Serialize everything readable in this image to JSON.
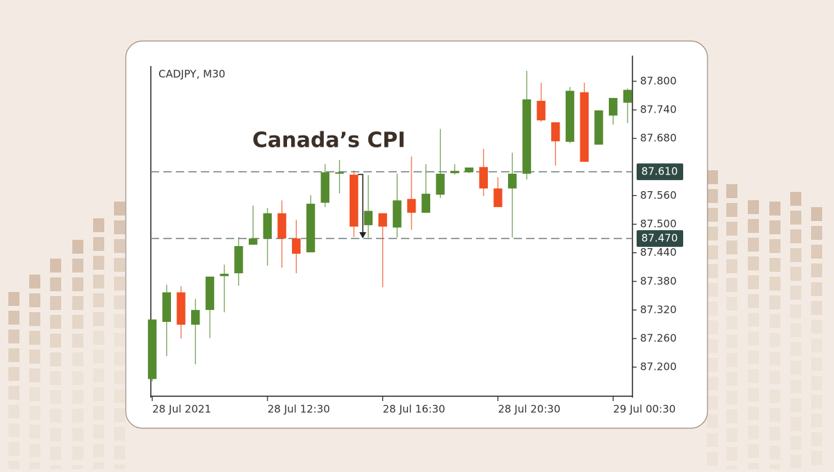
{
  "chart_data": {
    "type": "candlestick",
    "title": "CADJPY, M30",
    "annotation": "Canada’s CPI",
    "up_color": "#558b2f",
    "down_color": "#f04e23",
    "candles": [
      {
        "open": 87.175,
        "high": 87.3,
        "low": 87.17,
        "close": 87.3
      },
      {
        "open": 87.295,
        "high": 87.373,
        "low": 87.223,
        "close": 87.357
      },
      {
        "open": 87.357,
        "high": 87.37,
        "low": 87.26,
        "close": 87.289
      },
      {
        "open": 87.289,
        "high": 87.343,
        "low": 87.206,
        "close": 87.32
      },
      {
        "open": 87.32,
        "high": 87.39,
        "low": 87.261,
        "close": 87.39
      },
      {
        "open": 87.391,
        "high": 87.415,
        "low": 87.315,
        "close": 87.396
      },
      {
        "open": 87.397,
        "high": 87.473,
        "low": 87.371,
        "close": 87.454
      },
      {
        "open": 87.457,
        "high": 87.539,
        "low": 87.457,
        "close": 87.47
      },
      {
        "open": 87.47,
        "high": 87.534,
        "low": 87.413,
        "close": 87.523
      },
      {
        "open": 87.523,
        "high": 87.55,
        "low": 87.409,
        "close": 87.47
      },
      {
        "open": 87.47,
        "high": 87.509,
        "low": 87.397,
        "close": 87.438
      },
      {
        "open": 87.441,
        "high": 87.561,
        "low": 87.441,
        "close": 87.543
      },
      {
        "open": 87.545,
        "high": 87.626,
        "low": 87.536,
        "close": 87.609
      },
      {
        "open": 87.606,
        "high": 87.635,
        "low": 87.565,
        "close": 87.609
      },
      {
        "open": 87.604,
        "high": 87.613,
        "low": 87.473,
        "close": 87.495
      },
      {
        "open": 87.498,
        "high": 87.603,
        "low": 87.472,
        "close": 87.528
      },
      {
        "open": 87.523,
        "high": 87.523,
        "low": 87.368,
        "close": 87.495
      },
      {
        "open": 87.493,
        "high": 87.606,
        "low": 87.472,
        "close": 87.55
      },
      {
        "open": 87.553,
        "high": 87.642,
        "low": 87.488,
        "close": 87.524
      },
      {
        "open": 87.524,
        "high": 87.626,
        "low": 87.524,
        "close": 87.564
      },
      {
        "open": 87.562,
        "high": 87.7,
        "low": 87.555,
        "close": 87.606
      },
      {
        "open": 87.607,
        "high": 87.626,
        "low": 87.604,
        "close": 87.612
      },
      {
        "open": 87.609,
        "high": 87.619,
        "low": 87.607,
        "close": 87.619
      },
      {
        "open": 87.62,
        "high": 87.658,
        "low": 87.559,
        "close": 87.575
      },
      {
        "open": 87.575,
        "high": 87.599,
        "low": 87.536,
        "close": 87.536
      },
      {
        "open": 87.575,
        "high": 87.65,
        "low": 87.472,
        "close": 87.606
      },
      {
        "open": 87.606,
        "high": 87.822,
        "low": 87.594,
        "close": 87.762
      },
      {
        "open": 87.759,
        "high": 87.797,
        "low": 87.715,
        "close": 87.718
      },
      {
        "open": 87.714,
        "high": 87.714,
        "low": 87.623,
        "close": 87.674
      },
      {
        "open": 87.673,
        "high": 87.788,
        "low": 87.67,
        "close": 87.78
      },
      {
        "open": 87.777,
        "high": 87.797,
        "low": 87.631,
        "close": 87.631
      },
      {
        "open": 87.667,
        "high": 87.739,
        "low": 87.667,
        "close": 87.739
      },
      {
        "open": 87.728,
        "high": 87.765,
        "low": 87.709,
        "close": 87.765
      },
      {
        "open": 87.755,
        "high": 87.785,
        "low": 87.712,
        "close": 87.782
      }
    ],
    "xlim": [
      -0.1,
      33.34
    ],
    "xticks": [
      {
        "value": 0,
        "label": "28 Jul 2021"
      },
      {
        "value": 8,
        "label": "28 Jul 12:30"
      },
      {
        "value": 16,
        "label": "28 Jul 16:30"
      },
      {
        "value": 24,
        "label": "28 Jul 20:30"
      },
      {
        "value": 32,
        "label": "29 Jul 00:30"
      }
    ],
    "ylim": [
      87.171,
      87.832
    ],
    "yticks": [
      {
        "value": 87.2,
        "label": "87.200"
      },
      {
        "value": 87.26,
        "label": "87.260"
      },
      {
        "value": 87.32,
        "label": "87.320"
      },
      {
        "value": 87.38,
        "label": "87.380"
      },
      {
        "value": 87.44,
        "label": "87.440"
      },
      {
        "value": 87.5,
        "label": "87.500"
      },
      {
        "value": 87.56,
        "label": "87.560"
      },
      {
        "value": 87.68,
        "label": "87.680"
      },
      {
        "value": 87.74,
        "label": "87.740"
      },
      {
        "value": 87.8,
        "label": "87.800"
      }
    ],
    "hlines": [
      {
        "value": 87.61,
        "label": "87.610"
      },
      {
        "value": 87.47,
        "label": "87.470"
      }
    ]
  }
}
